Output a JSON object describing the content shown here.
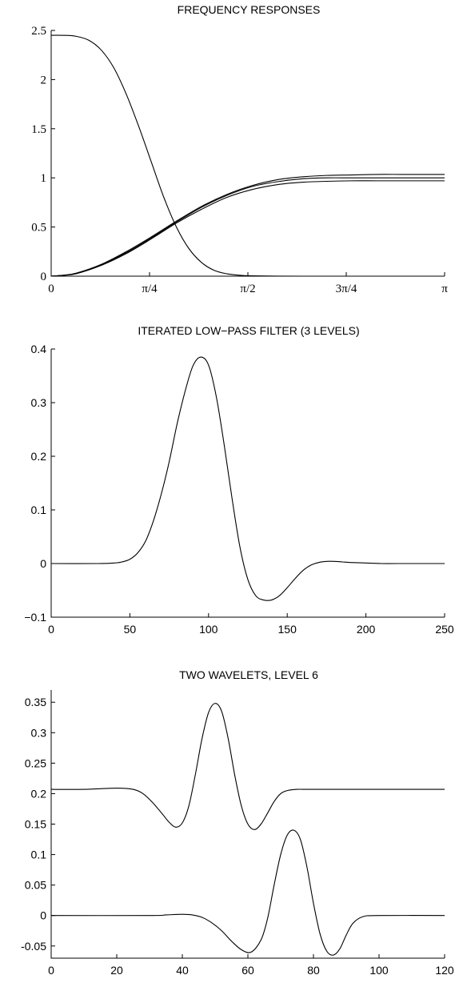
{
  "chart_data": [
    {
      "type": "line",
      "title": "FREQUENCY RESPONSES",
      "xlabel": "",
      "ylabel": "",
      "xlim": [
        0,
        3.14159
      ],
      "ylim": [
        0,
        2.5
      ],
      "x_ticks": [
        {
          "value": 0,
          "label": "0"
        },
        {
          "value": 0.7854,
          "label": "π/4"
        },
        {
          "value": 1.5708,
          "label": "π/2"
        },
        {
          "value": 2.3562,
          "label": "3π/4"
        },
        {
          "value": 3.14159,
          "label": "π"
        }
      ],
      "y_ticks": [
        {
          "value": 0,
          "label": "0"
        },
        {
          "value": 0.5,
          "label": "0.5"
        },
        {
          "value": 1,
          "label": "1"
        },
        {
          "value": 1.5,
          "label": "1.5"
        },
        {
          "value": 2,
          "label": "2"
        },
        {
          "value": 2.5,
          "label": "2.5"
        }
      ],
      "tick_font": "serif",
      "grid": false,
      "series": [
        {
          "x": [
            0,
            0.1,
            0.2,
            0.3,
            0.4,
            0.5,
            0.6,
            0.7,
            0.8,
            0.9,
            1.0,
            1.1,
            1.2,
            1.3,
            1.4,
            1.5,
            1.6,
            1.8,
            2.0,
            2.2,
            2.5,
            3.14159
          ],
          "values": [
            2.45,
            2.45,
            2.44,
            2.4,
            2.3,
            2.12,
            1.85,
            1.52,
            1.16,
            0.8,
            0.5,
            0.28,
            0.14,
            0.06,
            0.025,
            0.01,
            0.004,
            0.001,
            0,
            0,
            0,
            0
          ]
        },
        {
          "x": [
            0,
            0.1,
            0.2,
            0.4,
            0.6,
            0.8,
            1.0,
            1.2,
            1.4,
            1.6,
            1.8,
            2.0,
            2.2,
            2.4,
            2.6,
            2.8,
            3.0,
            3.14159
          ],
          "values": [
            0,
            0.01,
            0.03,
            0.12,
            0.25,
            0.4,
            0.56,
            0.71,
            0.83,
            0.92,
            0.98,
            1.01,
            1.025,
            1.03,
            1.035,
            1.035,
            1.035,
            1.035
          ]
        },
        {
          "x": [
            0,
            0.1,
            0.2,
            0.4,
            0.6,
            0.8,
            1.0,
            1.2,
            1.4,
            1.6,
            1.8,
            2.0,
            2.2,
            2.4,
            2.6,
            2.8,
            3.0,
            3.14159
          ],
          "values": [
            0,
            0.01,
            0.03,
            0.115,
            0.24,
            0.39,
            0.55,
            0.7,
            0.82,
            0.91,
            0.96,
            0.99,
            1.0,
            1.0,
            1.0,
            1.0,
            1.0,
            1.0
          ]
        },
        {
          "x": [
            0,
            0.1,
            0.2,
            0.4,
            0.6,
            0.8,
            1.0,
            1.2,
            1.4,
            1.6,
            1.8,
            2.0,
            2.2,
            2.4,
            2.6,
            2.8,
            3.0,
            3.14159
          ],
          "values": [
            0,
            0.01,
            0.025,
            0.11,
            0.23,
            0.38,
            0.54,
            0.68,
            0.8,
            0.88,
            0.93,
            0.955,
            0.965,
            0.97,
            0.97,
            0.97,
            0.97,
            0.97
          ]
        }
      ]
    },
    {
      "type": "line",
      "title": "ITERATED LOW−PASS FILTER (3 LEVELS)",
      "xlabel": "",
      "ylabel": "",
      "xlim": [
        0,
        250
      ],
      "ylim": [
        -0.1,
        0.4
      ],
      "x_ticks": [
        {
          "value": 0,
          "label": "0"
        },
        {
          "value": 50,
          "label": "50"
        },
        {
          "value": 100,
          "label": "100"
        },
        {
          "value": 150,
          "label": "150"
        },
        {
          "value": 200,
          "label": "200"
        },
        {
          "value": 250,
          "label": "250"
        }
      ],
      "y_ticks": [
        {
          "value": -0.1,
          "label": "−0.1"
        },
        {
          "value": 0,
          "label": "0"
        },
        {
          "value": 0.1,
          "label": "0.1"
        },
        {
          "value": 0.2,
          "label": "0.2"
        },
        {
          "value": 0.3,
          "label": "0.3"
        },
        {
          "value": 0.4,
          "label": "0.4"
        }
      ],
      "tick_font": "sans",
      "grid": false,
      "series": [
        {
          "x": [
            0,
            30,
            40,
            45,
            50,
            55,
            60,
            65,
            70,
            75,
            80,
            85,
            90,
            95,
            100,
            105,
            110,
            115,
            120,
            125,
            130,
            135,
            140,
            145,
            150,
            155,
            160,
            165,
            170,
            175,
            180,
            185,
            190,
            200,
            210,
            220,
            250
          ],
          "values": [
            0,
            0,
            0.001,
            0.003,
            0.008,
            0.02,
            0.042,
            0.08,
            0.13,
            0.19,
            0.26,
            0.32,
            0.368,
            0.385,
            0.37,
            0.31,
            0.22,
            0.12,
            0.03,
            -0.03,
            -0.06,
            -0.068,
            -0.068,
            -0.06,
            -0.045,
            -0.028,
            -0.013,
            -0.003,
            0.002,
            0.004,
            0.004,
            0.003,
            0.002,
            0.001,
            0,
            0,
            0
          ]
        }
      ]
    },
    {
      "type": "line",
      "title": "TWO WAVELETS, LEVEL 6",
      "xlabel": "",
      "ylabel": "",
      "xlim": [
        0,
        120
      ],
      "ylim": [
        -0.07,
        0.37
      ],
      "x_ticks": [
        {
          "value": 0,
          "label": "0"
        },
        {
          "value": 20,
          "label": "20"
        },
        {
          "value": 40,
          "label": "40"
        },
        {
          "value": 60,
          "label": "60"
        },
        {
          "value": 80,
          "label": "80"
        },
        {
          "value": 100,
          "label": "100"
        },
        {
          "value": 120,
          "label": "120"
        }
      ],
      "y_ticks": [
        {
          "value": -0.05,
          "label": "-0.05"
        },
        {
          "value": 0,
          "label": "0"
        },
        {
          "value": 0.05,
          "label": "0.05"
        },
        {
          "value": 0.1,
          "label": "0.1"
        },
        {
          "value": 0.15,
          "label": "0.15"
        },
        {
          "value": 0.2,
          "label": "0.2"
        },
        {
          "value": 0.25,
          "label": "0.25"
        },
        {
          "value": 0.3,
          "label": "0.3"
        },
        {
          "value": 0.35,
          "label": "0.35"
        }
      ],
      "tick_font": "sans",
      "grid": false,
      "series": [
        {
          "x": [
            0,
            10,
            20,
            25,
            28,
            31,
            34,
            36,
            38,
            40,
            42,
            44,
            46,
            48,
            50,
            52,
            54,
            56,
            58,
            60,
            62,
            64,
            66,
            68,
            70,
            72,
            75,
            80,
            100,
            120
          ],
          "values": [
            0.207,
            0.207,
            0.209,
            0.207,
            0.2,
            0.185,
            0.166,
            0.153,
            0.145,
            0.152,
            0.18,
            0.232,
            0.29,
            0.333,
            0.348,
            0.335,
            0.29,
            0.23,
            0.18,
            0.15,
            0.141,
            0.15,
            0.168,
            0.187,
            0.2,
            0.205,
            0.207,
            0.207,
            0.207,
            0.207
          ]
        },
        {
          "x": [
            0,
            30,
            35,
            40,
            43,
            46,
            49,
            52,
            55,
            58,
            61,
            64,
            66,
            68,
            70,
            72,
            74,
            76,
            78,
            80,
            82,
            84,
            86,
            88,
            90,
            92,
            95,
            100,
            120
          ],
          "values": [
            0,
            0,
            0.001,
            0.002,
            0.001,
            -0.003,
            -0.012,
            -0.025,
            -0.042,
            -0.056,
            -0.06,
            -0.04,
            -0.005,
            0.05,
            0.1,
            0.132,
            0.14,
            0.125,
            0.08,
            0.02,
            -0.03,
            -0.058,
            -0.065,
            -0.055,
            -0.032,
            -0.013,
            -0.002,
            0,
            0
          ]
        }
      ]
    }
  ]
}
